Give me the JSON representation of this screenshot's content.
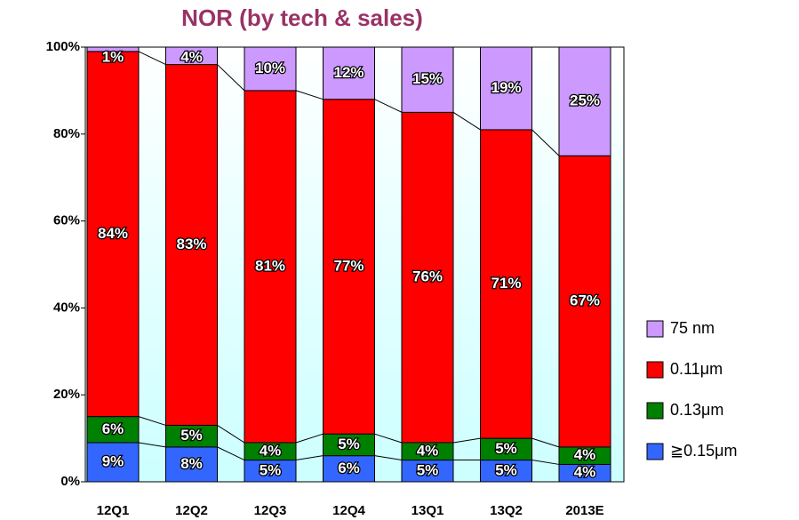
{
  "chart_data": {
    "type": "stacked_bar",
    "title": "NOR (by tech & sales)",
    "categories": [
      "12Q1",
      "12Q2",
      "12Q3",
      "12Q4",
      "13Q1",
      "13Q2",
      "2013E"
    ],
    "series": [
      {
        "name": "≧0.15μm",
        "color": "#3366ff",
        "values": [
          9,
          8,
          5,
          6,
          5,
          5,
          4
        ],
        "value_labels": [
          "9%",
          "8%",
          "5%",
          "6%",
          "5%",
          "5%",
          "4%"
        ]
      },
      {
        "name": "0.13μm",
        "color": "#008000",
        "values": [
          6,
          5,
          4,
          5,
          4,
          5,
          4
        ],
        "value_labels": [
          "6%",
          "5%",
          "4%",
          "5%",
          "4%",
          "5%",
          "4%"
        ]
      },
      {
        "name": "0.11μm",
        "color": "#ff0000",
        "values": [
          84,
          83,
          81,
          77,
          76,
          71,
          67
        ],
        "value_labels": [
          "84%",
          "83%",
          "81%",
          "77%",
          "76%",
          "71%",
          "67%"
        ]
      },
      {
        "name": "75 nm",
        "color": "#cc99ff",
        "values": [
          1,
          4,
          10,
          12,
          15,
          19,
          25
        ],
        "value_labels": [
          "1%",
          "4%",
          "10%",
          "12%",
          "15%",
          "19%",
          "25%"
        ]
      }
    ],
    "ylim": [
      0,
      100
    ],
    "yticks": [
      {
        "value": 0,
        "label": "0%"
      },
      {
        "value": 20,
        "label": "20%"
      },
      {
        "value": 40,
        "label": "40%"
      },
      {
        "value": 60,
        "label": "60%"
      },
      {
        "value": 80,
        "label": "80%"
      },
      {
        "value": 100,
        "label": "100%"
      }
    ]
  }
}
